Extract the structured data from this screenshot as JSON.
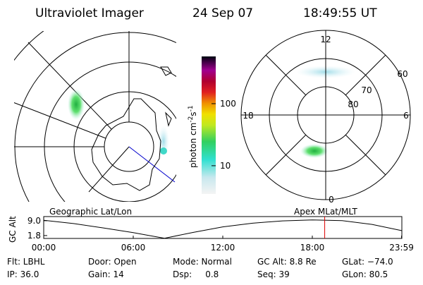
{
  "header": {
    "title": "Ultraviolet Imager",
    "date": "24 Sep 07",
    "time": "18:49:55 UT"
  },
  "colorbar": {
    "label": "photon cm",
    "exp1": "-2",
    "unit2": "s",
    "exp2": "-1",
    "ticks": [
      100,
      10
    ],
    "range": [
      3.5,
      577
    ],
    "log": true
  },
  "polar": {
    "mlt_labels": [
      "12",
      "6",
      "0",
      "18"
    ],
    "mlat_labels": [
      "60",
      "70",
      "80"
    ]
  },
  "panel_labels": {
    "left": "Geographic Lat/Lon",
    "right": "Apex MLat/MLT"
  },
  "chart_data": {
    "type": "line",
    "y_label": "GC Alt",
    "x": [
      0,
      2,
      4,
      6,
      7,
      8.1,
      10,
      12,
      14,
      16,
      18,
      20,
      22,
      23.98
    ],
    "values": [
      9.2,
      7.6,
      5.5,
      3.2,
      1.9,
      0.5,
      3.3,
      6.0,
      7.8,
      8.9,
      9.4,
      9.0,
      7.2,
      4.2
    ],
    "color": "#000000",
    "xlim": [
      0,
      24
    ],
    "ylim": [
      0.4,
      11.0
    ],
    "xticks": [
      {
        "value": 0,
        "label": "00:00"
      },
      {
        "value": 6,
        "label": "06:00"
      },
      {
        "value": 12,
        "label": "12:00"
      },
      {
        "value": 18,
        "label": "18:00"
      },
      {
        "value": 23.98,
        "label": "23:59"
      }
    ],
    "yticks": [
      {
        "value": 9.0,
        "label": "9.0"
      },
      {
        "value": 1.8,
        "label": "1.8"
      }
    ],
    "marker_hour": 18.83,
    "marker_color": "#dd0000"
  },
  "footer": {
    "rows": [
      [
        "Flt: LBHL",
        "Door: Open",
        "Mode: Normal",
        "GC Alt: 8.8 Re",
        "GLat: −74.0"
      ],
      [
        "IP: 36.0",
        "Gain: 14",
        "Dsp:     0.8",
        "Seq: 39",
        "GLon: 80.5"
      ]
    ]
  }
}
